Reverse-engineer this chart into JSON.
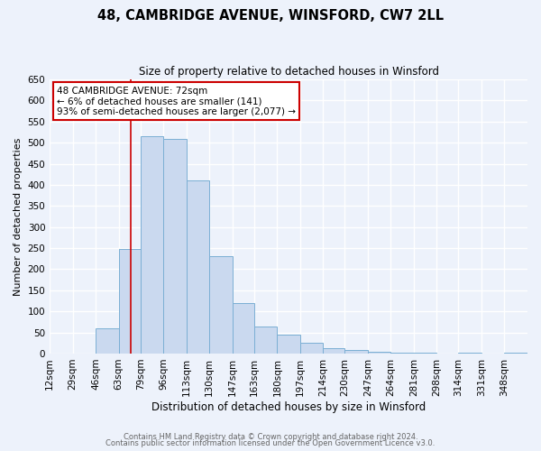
{
  "title": "48, CAMBRIDGE AVENUE, WINSFORD, CW7 2LL",
  "subtitle": "Size of property relative to detached houses in Winsford",
  "xlabel": "Distribution of detached houses by size in Winsford",
  "ylabel": "Number of detached properties",
  "bin_edges": [
    12,
    29,
    46,
    63,
    79,
    96,
    113,
    130,
    147,
    163,
    180,
    197,
    214,
    230,
    247,
    264,
    281,
    298,
    314,
    331,
    348,
    365
  ],
  "bin_labels": [
    "12sqm",
    "29sqm",
    "46sqm",
    "63sqm",
    "79sqm",
    "96sqm",
    "113sqm",
    "130sqm",
    "147sqm",
    "163sqm",
    "180sqm",
    "197sqm",
    "214sqm",
    "230sqm",
    "247sqm",
    "264sqm",
    "281sqm",
    "298sqm",
    "314sqm",
    "331sqm",
    "348sqm"
  ],
  "bar_values": [
    0,
    0,
    60,
    247,
    515,
    510,
    410,
    230,
    120,
    65,
    45,
    25,
    12,
    8,
    5,
    3,
    1,
    0,
    1,
    0,
    2
  ],
  "bar_color": "#cad9ef",
  "bar_edge_color": "#7bafd4",
  "property_line_x": 72,
  "property_line_color": "#cc0000",
  "annotation_text": "48 CAMBRIDGE AVENUE: 72sqm\n← 6% of detached houses are smaller (141)\n93% of semi-detached houses are larger (2,077) →",
  "annotation_box_color": "#ffffff",
  "annotation_box_edge": "#cc0000",
  "ylim": [
    0,
    650
  ],
  "yticks": [
    0,
    50,
    100,
    150,
    200,
    250,
    300,
    350,
    400,
    450,
    500,
    550,
    600,
    650
  ],
  "footer_line1": "Contains HM Land Registry data © Crown copyright and database right 2024.",
  "footer_line2": "Contains public sector information licensed under the Open Government Licence v3.0.",
  "bg_color": "#edf2fb",
  "plot_bg_color": "#edf2fb",
  "grid_color": "#ffffff",
  "title_fontsize": 10.5,
  "subtitle_fontsize": 8.5,
  "ylabel_fontsize": 8,
  "xlabel_fontsize": 8.5,
  "tick_fontsize": 7.5,
  "footer_fontsize": 6,
  "annotation_fontsize": 7.5
}
